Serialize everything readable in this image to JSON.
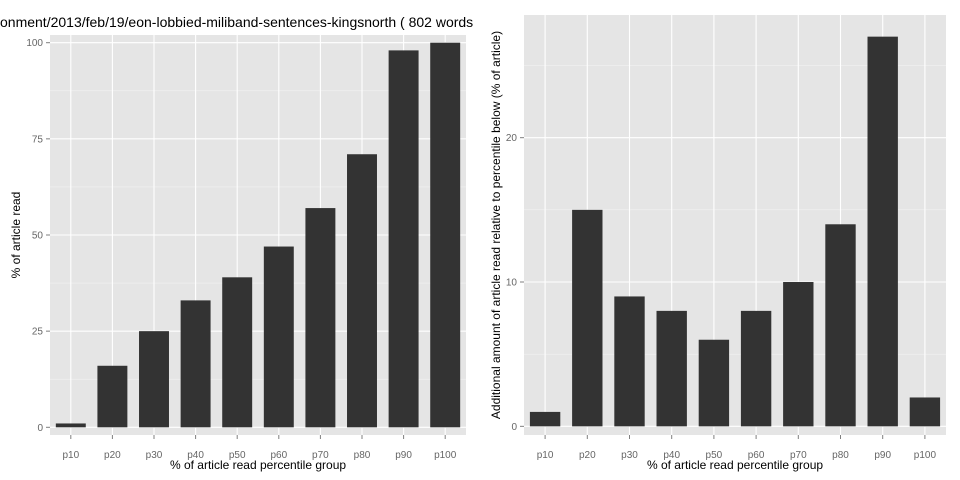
{
  "chart_data": [
    {
      "type": "bar",
      "title": "onment/2013/feb/19/eon-lobbied-miliband-sentences-kingsnorth ( 802 words",
      "xlabel": "% of article read percentile group",
      "ylabel": "% of article read",
      "categories": [
        "p10",
        "p20",
        "p30",
        "p40",
        "p50",
        "p60",
        "p70",
        "p80",
        "p90",
        "p100"
      ],
      "values": [
        1,
        16,
        25,
        33,
        39,
        47,
        57,
        71,
        98,
        100
      ],
      "ylim": [
        -2,
        102
      ],
      "yticks": [
        0,
        25,
        50,
        75,
        100
      ],
      "ytick_labels": [
        "0",
        "25",
        "50",
        "75",
        "100"
      ],
      "grid": true
    },
    {
      "type": "bar",
      "title": "",
      "xlabel": "% of article read percentile group",
      "ylabel": "Additional amount of article read relative to percentile below (% of article)",
      "categories": [
        "p10",
        "p20",
        "p30",
        "p40",
        "p50",
        "p60",
        "p70",
        "p80",
        "p90",
        "p100"
      ],
      "values": [
        1,
        15,
        9,
        8,
        6,
        8,
        10,
        14,
        27,
        2
      ],
      "ylim": [
        -0.6,
        28.5
      ],
      "yticks": [
        0,
        10,
        20
      ],
      "ytick_labels": [
        "0",
        "10",
        "20"
      ],
      "grid": true
    }
  ],
  "colors": {
    "panel_background": "#e5e5e5",
    "bar_fill": "#333333",
    "grid": "#ffffff"
  }
}
